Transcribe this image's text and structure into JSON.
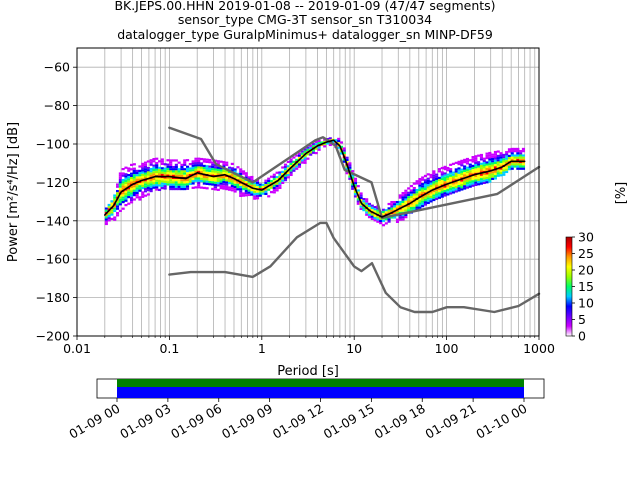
{
  "chart_data": {
    "type": "heatmap",
    "title_lines": [
      "BK.JEPS.00.HHN   2019-01-08 -- 2019-01-09  (47/47 segments)",
      "sensor_type CMG-3T sensor_sn T310034",
      "datalogger_type GuralpMinimus+ datalogger_sn MINP-DF59"
    ],
    "xlabel": "Period [s]",
    "ylabel": "Power [m²/s⁴/Hz] [dB]",
    "x_scale": "log",
    "xlim": [
      0.01,
      1000
    ],
    "ylim": [
      -200,
      -50
    ],
    "x_tick_labels": [
      {
        "value": 0.01,
        "label": "0.01"
      },
      {
        "value": 0.1,
        "label": "0.1"
      },
      {
        "value": 1,
        "label": "1"
      },
      {
        "value": 10,
        "label": "10"
      },
      {
        "value": 100,
        "label": "100"
      },
      {
        "value": 1000,
        "label": "1000"
      }
    ],
    "y_ticks": [
      -200,
      -180,
      -160,
      -140,
      -120,
      -100,
      -80,
      -60
    ],
    "grid": true,
    "colorbar": {
      "label": "[%]",
      "min": 0,
      "max": 30,
      "ticks": [
        0,
        5,
        10,
        15,
        20,
        25,
        30
      ],
      "colormap": [
        "#ffffff",
        "#cc00ff",
        "#6600ff",
        "#0000ff",
        "#00ccff",
        "#00ff66",
        "#99ff00",
        "#ffff00",
        "#ff9900",
        "#ff0000",
        "#aa0000"
      ]
    },
    "series": [
      {
        "role": "new-high-noise-model",
        "color": "#666666",
        "x": [
          0.1,
          0.22,
          0.32,
          0.8,
          3.8,
          4.6,
          6.3,
          7.9,
          15.4,
          20,
          354.8,
          1000
        ],
        "y": [
          -91.5,
          -97.4,
          -110.5,
          -120,
          -98,
          -96.5,
          -101,
          -113.5,
          -120,
          -138.5,
          -126,
          -112
        ]
      },
      {
        "role": "new-low-noise-model",
        "color": "#666666",
        "x": [
          0.1,
          0.17,
          0.4,
          0.8,
          1.24,
          2.4,
          4.3,
          5,
          6,
          10,
          12,
          15.6,
          21.9,
          31.6,
          45,
          70,
          101,
          154,
          328,
          600,
          1000
        ],
        "y": [
          -168,
          -166.7,
          -166.7,
          -169.2,
          -163.7,
          -148.6,
          -141.1,
          -141.1,
          -149,
          -163.8,
          -166.2,
          -162.1,
          -177.5,
          -185,
          -187.5,
          -187.5,
          -185,
          -185,
          -187.5,
          -184.4,
          -178
        ]
      },
      {
        "role": "mode-black",
        "color": "#000000",
        "x": [
          0.02,
          0.025,
          0.03,
          0.04,
          0.05,
          0.07,
          0.1,
          0.15,
          0.2,
          0.3,
          0.4,
          0.5,
          0.6,
          0.8,
          1,
          1.5,
          2,
          3,
          4,
          5,
          6,
          7,
          8,
          10,
          12,
          15,
          20,
          25,
          30,
          40,
          50,
          70,
          100,
          150,
          200,
          300,
          400,
          500,
          700
        ],
        "y": [
          -137,
          -132,
          -125,
          -121,
          -119,
          -117,
          -117,
          -118,
          -115,
          -117,
          -116,
          -118,
          -120,
          -123,
          -124,
          -119,
          -113,
          -105,
          -101,
          -99,
          -98,
          -101,
          -108,
          -122,
          -131,
          -135,
          -138,
          -136,
          -134,
          -131,
          -128,
          -124,
          -121,
          -118,
          -116,
          -114,
          -112,
          -109,
          -109
        ]
      }
    ],
    "heatmap_band": {
      "x": [
        0.02,
        0.025,
        0.03,
        0.04,
        0.05,
        0.07,
        0.1,
        0.15,
        0.2,
        0.3,
        0.4,
        0.5,
        0.6,
        0.8,
        1,
        1.5,
        2,
        3,
        4,
        5,
        6,
        7,
        8,
        10,
        12,
        15,
        20,
        25,
        30,
        40,
        50,
        70,
        100,
        150,
        200,
        300,
        400,
        500,
        700
      ],
      "lower": [
        -142,
        -140,
        -134,
        -130,
        -128,
        -124,
        -124,
        -124,
        -122,
        -124,
        -123,
        -125,
        -127,
        -129,
        -129,
        -124,
        -117,
        -109,
        -104,
        -101,
        -100,
        -104,
        -112,
        -126,
        -135,
        -139,
        -142,
        -141,
        -140,
        -137,
        -134,
        -130,
        -127,
        -124,
        -121,
        -119,
        -116,
        -113,
        -113
      ],
      "upper": [
        -134,
        -128,
        -113,
        -110,
        -110,
        -107,
        -108,
        -108,
        -107,
        -108,
        -109,
        -110,
        -113,
        -117,
        -120,
        -114,
        -108,
        -102,
        -98,
        -97,
        -96,
        -97,
        -103,
        -116,
        -126,
        -130,
        -133,
        -130,
        -127,
        -122,
        -118,
        -114,
        -111,
        -108,
        -106,
        -104,
        -103,
        -102,
        -102
      ]
    }
  },
  "time_coverage": {
    "tick_labels": [
      "01-09 00",
      "01-09 03",
      "01-09 06",
      "01-09 09",
      "01-09 12",
      "01-09 15",
      "01-09 18",
      "01-09 21",
      "01-10 00"
    ],
    "covered_fraction": [
      0.0,
      1.0
    ],
    "colors": {
      "data": "#0000ff",
      "used": "#008000"
    }
  }
}
